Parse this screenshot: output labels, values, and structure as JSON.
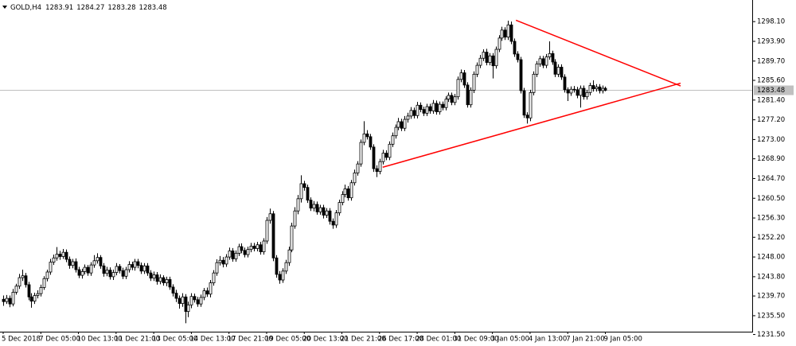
{
  "chart_data": {
    "type": "candlestick",
    "symbol": "GOLD,H4",
    "header_values": [
      1283.91,
      1284.27,
      1283.28,
      1283.48
    ],
    "categories": [
      "5 Dec 2018",
      null,
      null,
      null,
      null,
      null,
      null,
      null,
      null,
      null,
      null,
      null,
      "7 Dec 05:00",
      null,
      null,
      null,
      null,
      null,
      null,
      null,
      null,
      null,
      null,
      null,
      "10 Dec 13:00",
      null,
      null,
      null,
      null,
      null,
      null,
      null,
      null,
      null,
      null,
      null,
      "11 Dec 21:00",
      null,
      null,
      null,
      null,
      null,
      null,
      null,
      null,
      null,
      null,
      null,
      "13 Dec 05:00",
      null,
      null,
      null,
      null,
      null,
      null,
      null,
      null,
      null,
      null,
      null,
      "14 Dec 13:00",
      null,
      null,
      null,
      null,
      null,
      null,
      null,
      null,
      null,
      null,
      null,
      "17 Dec 21:00",
      null,
      null,
      null,
      null,
      null,
      null,
      null,
      null,
      null,
      null,
      null,
      "19 Dec 05:00",
      null,
      null,
      null,
      null,
      null,
      null,
      null,
      null,
      null,
      null,
      null,
      "20 Dec 13:00",
      null,
      null,
      null,
      null,
      null,
      null,
      null,
      null,
      null,
      null,
      null,
      "21 Dec 21:00",
      null,
      null,
      null,
      null,
      null,
      null,
      null,
      null,
      null,
      null,
      null,
      "26 Dec 17:00",
      null,
      null,
      null,
      null,
      null,
      null,
      null,
      null,
      null,
      null,
      null,
      "28 Dec 01:00",
      null,
      null,
      null,
      null,
      null,
      null,
      null,
      null,
      null,
      null,
      null,
      "31 Dec 09:00",
      null,
      null,
      null,
      null,
      null,
      null,
      null,
      null,
      null,
      null,
      null,
      "3 Jan 05:00",
      null,
      null,
      null,
      null,
      null,
      null,
      null,
      null,
      null,
      null,
      null,
      "4 Jan 13:00",
      null,
      null,
      null,
      null,
      null,
      null,
      null,
      null,
      null,
      null,
      null,
      "7 Jan 21:00",
      null,
      null,
      null,
      null,
      null,
      null,
      null,
      null,
      null,
      null,
      null,
      "9 Jan 05:00"
    ],
    "open": [
      1239.0,
      1238.5,
      1239.2,
      1238.0,
      1240.5,
      1241.8,
      1243.6,
      1244.0,
      1242.1,
      1239.5,
      1238.6,
      1239.8,
      1240.2,
      1241.5,
      1243.4,
      1244.8,
      1246.9,
      1247.8,
      1248.6,
      1248.1,
      1249.0,
      1247.5,
      1246.2,
      1247.0,
      1245.3,
      1244.1,
      1244.9,
      1245.8,
      1244.6,
      1246.3,
      1247.2,
      1247.9,
      1246.1,
      1244.5,
      1245.2,
      1243.8,
      1244.7,
      1246.0,
      1245.1,
      1243.9,
      1245.3,
      1246.4,
      1245.8,
      1247.0,
      1246.2,
      1245.0,
      1246.1,
      1244.6,
      1243.5,
      1244.2,
      1242.8,
      1243.6,
      1242.5,
      1243.2,
      1241.6,
      1240.3,
      1239.2,
      1238.1,
      1239.5,
      1236.4,
      1237.8,
      1239.6,
      1238.9,
      1238.0,
      1239.4,
      1240.8,
      1240.1,
      1242.5,
      1244.6,
      1246.8,
      1247.3,
      1246.5,
      1248.0,
      1249.3,
      1247.6,
      1248.8,
      1250.2,
      1249.4,
      1248.5,
      1249.6,
      1250.3,
      1249.8,
      1250.6,
      1249.1,
      1251.4,
      1255.8,
      1257.2,
      1247.8,
      1244.3,
      1243.1,
      1245.0,
      1246.8,
      1249.5,
      1254.6,
      1257.8,
      1260.4,
      1263.6,
      1262.8,
      1260.1,
      1258.4,
      1259.2,
      1257.6,
      1258.5,
      1256.9,
      1257.8,
      1255.6,
      1254.8,
      1257.4,
      1259.6,
      1261.3,
      1262.5,
      1260.6,
      1263.8,
      1265.9,
      1267.8,
      1272.4,
      1274.2,
      1273.6,
      1271.4,
      1266.8,
      1266.2,
      1268.3,
      1270.1,
      1269.2,
      1272.0,
      1273.8,
      1275.6,
      1276.8,
      1275.4,
      1277.3,
      1278.0,
      1279.2,
      1278.1,
      1280.3,
      1279.4,
      1278.6,
      1280.0,
      1279.1,
      1280.7,
      1278.9,
      1280.5,
      1279.8,
      1281.6,
      1282.4,
      1280.9,
      1282.1,
      1285.8,
      1287.2,
      1284.6,
      1280.4,
      1283.5,
      1286.9,
      1288.8,
      1290.3,
      1291.6,
      1289.4,
      1290.8,
      1288.7,
      1292.2,
      1294.6,
      1296.3,
      1294.8,
      1297.4,
      1293.9,
      1291.2,
      1290.0,
      1283.4,
      1278.2,
      1277.6,
      1283.0,
      1286.9,
      1289.1,
      1290.2,
      1288.8,
      1290.6,
      1291.3,
      1289.5,
      1286.9,
      1288.4,
      1286.3,
      1283.6,
      1282.9,
      1283.7,
      1283.6,
      1282.4,
      1283.9,
      1282.1,
      1283.0,
      1284.5,
      1283.8,
      1284.2,
      1283.4,
      1283.91
    ],
    "high": [
      1239.8,
      1239.9,
      1239.8,
      1241.2,
      1242.3,
      1244.4,
      1245.3,
      1244.6,
      1242.7,
      1240.3,
      1240.4,
      1240.9,
      1242.1,
      1243.9,
      1245.3,
      1247.6,
      1248.5,
      1250.1,
      1249.3,
      1249.7,
      1249.6,
      1248.1,
      1247.6,
      1247.7,
      1245.9,
      1245.5,
      1246.4,
      1246.3,
      1246.9,
      1248.4,
      1248.8,
      1248.4,
      1246.7,
      1245.9,
      1245.8,
      1245.3,
      1246.7,
      1246.5,
      1245.7,
      1245.9,
      1247.1,
      1247.0,
      1247.6,
      1247.6,
      1246.8,
      1246.7,
      1246.7,
      1245.2,
      1244.9,
      1244.8,
      1244.3,
      1244.1,
      1243.8,
      1243.8,
      1242.2,
      1241.0,
      1239.8,
      1240.3,
      1240.1,
      1238.5,
      1240.3,
      1240.2,
      1239.5,
      1240.0,
      1241.4,
      1241.5,
      1243.1,
      1245.2,
      1247.5,
      1248.2,
      1248.0,
      1248.6,
      1250.0,
      1249.9,
      1249.4,
      1250.8,
      1250.9,
      1250.0,
      1250.2,
      1251.0,
      1251.0,
      1251.2,
      1251.2,
      1252.0,
      1256.5,
      1258.3,
      1257.8,
      1248.4,
      1245.0,
      1245.6,
      1247.4,
      1250.2,
      1255.3,
      1258.6,
      1261.2,
      1265.4,
      1264.2,
      1263.4,
      1260.7,
      1259.9,
      1259.8,
      1259.1,
      1259.1,
      1258.4,
      1258.4,
      1256.2,
      1258.0,
      1260.2,
      1262.0,
      1263.4,
      1263.1,
      1264.4,
      1266.6,
      1268.4,
      1273.0,
      1276.9,
      1275.0,
      1274.2,
      1272.0,
      1267.5,
      1268.9,
      1270.8,
      1270.7,
      1272.6,
      1274.5,
      1276.2,
      1277.6,
      1277.4,
      1278.0,
      1278.7,
      1279.9,
      1279.8,
      1281.0,
      1280.9,
      1280.0,
      1280.6,
      1280.6,
      1281.4,
      1281.3,
      1281.1,
      1281.1,
      1282.2,
      1283.0,
      1283.0,
      1282.7,
      1286.4,
      1287.9,
      1287.8,
      1285.2,
      1284.1,
      1287.5,
      1289.4,
      1291.0,
      1292.2,
      1292.3,
      1291.4,
      1291.4,
      1292.8,
      1295.2,
      1297.0,
      1296.9,
      1298.3,
      1298.1,
      1294.5,
      1291.8,
      1290.6,
      1284.0,
      1278.8,
      1283.6,
      1287.5,
      1289.7,
      1290.8,
      1290.8,
      1291.2,
      1293.9,
      1291.9,
      1290.1,
      1289.0,
      1289.0,
      1286.9,
      1284.1,
      1284.3,
      1284.4,
      1284.2,
      1284.5,
      1284.5,
      1283.6,
      1285.1,
      1285.6,
      1284.8,
      1284.8,
      1284.5,
      1284.27
    ],
    "low": [
      1237.6,
      1238.0,
      1237.3,
      1237.5,
      1240.0,
      1241.2,
      1242.9,
      1241.5,
      1238.8,
      1237.2,
      1238.0,
      1239.2,
      1239.6,
      1241.0,
      1242.8,
      1244.2,
      1246.3,
      1247.2,
      1247.4,
      1247.6,
      1246.9,
      1245.5,
      1245.6,
      1244.7,
      1243.5,
      1243.4,
      1244.3,
      1244.0,
      1244.0,
      1245.7,
      1246.6,
      1245.5,
      1243.8,
      1243.9,
      1243.2,
      1243.1,
      1244.1,
      1244.5,
      1243.3,
      1243.3,
      1244.7,
      1245.2,
      1245.1,
      1245.6,
      1244.4,
      1244.4,
      1244.0,
      1242.9,
      1242.9,
      1242.1,
      1242.2,
      1241.9,
      1241.8,
      1241.0,
      1239.6,
      1238.4,
      1237.0,
      1237.4,
      1233.9,
      1235.2,
      1237.1,
      1238.3,
      1237.4,
      1237.4,
      1238.8,
      1239.5,
      1239.4,
      1241.9,
      1244.0,
      1246.2,
      1245.8,
      1245.9,
      1247.4,
      1247.0,
      1247.0,
      1248.2,
      1248.8,
      1247.9,
      1247.9,
      1249.0,
      1249.2,
      1249.2,
      1248.5,
      1248.5,
      1250.8,
      1255.1,
      1247.1,
      1243.6,
      1242.3,
      1242.5,
      1244.4,
      1246.1,
      1249.0,
      1254.0,
      1257.1,
      1259.6,
      1262.1,
      1259.5,
      1257.8,
      1257.7,
      1257.0,
      1257.0,
      1256.2,
      1256.3,
      1254.9,
      1254.0,
      1254.2,
      1256.8,
      1259.0,
      1260.7,
      1260.0,
      1260.0,
      1263.2,
      1265.3,
      1267.2,
      1271.8,
      1273.0,
      1270.8,
      1266.1,
      1265.0,
      1265.6,
      1267.7,
      1268.6,
      1268.6,
      1271.4,
      1273.2,
      1275.0,
      1274.8,
      1274.8,
      1276.6,
      1277.4,
      1277.5,
      1277.5,
      1278.8,
      1278.0,
      1278.0,
      1278.5,
      1278.5,
      1278.3,
      1278.3,
      1279.2,
      1279.2,
      1281.0,
      1280.3,
      1280.3,
      1281.5,
      1285.2,
      1284.0,
      1279.8,
      1279.8,
      1282.9,
      1286.3,
      1288.2,
      1289.7,
      1288.8,
      1288.8,
      1286.0,
      1288.1,
      1291.6,
      1294.0,
      1294.2,
      1294.2,
      1293.3,
      1290.6,
      1289.4,
      1282.8,
      1277.6,
      1276.4,
      1276.9,
      1282.4,
      1286.3,
      1288.5,
      1288.2,
      1288.2,
      1290.0,
      1288.9,
      1286.3,
      1286.3,
      1285.7,
      1283.0,
      1281.2,
      1282.3,
      1283.0,
      1281.8,
      1279.8,
      1281.5,
      1281.5,
      1282.4,
      1283.2,
      1283.2,
      1282.8,
      1282.8,
      1283.28
    ],
    "close": [
      1238.5,
      1239.2,
      1238.0,
      1240.5,
      1241.8,
      1243.6,
      1244.0,
      1242.1,
      1239.5,
      1238.6,
      1239.8,
      1240.2,
      1241.5,
      1243.4,
      1244.8,
      1246.9,
      1247.8,
      1248.6,
      1248.1,
      1249.0,
      1247.5,
      1246.2,
      1247.0,
      1245.3,
      1244.1,
      1244.9,
      1245.8,
      1244.6,
      1246.3,
      1247.2,
      1247.9,
      1246.1,
      1244.5,
      1245.2,
      1243.8,
      1244.7,
      1246.0,
      1245.1,
      1243.9,
      1245.3,
      1246.4,
      1245.8,
      1247.0,
      1246.2,
      1245.0,
      1246.1,
      1244.6,
      1243.5,
      1244.2,
      1242.8,
      1243.6,
      1242.5,
      1243.2,
      1241.6,
      1240.3,
      1239.2,
      1238.1,
      1239.5,
      1236.4,
      1237.8,
      1239.6,
      1238.9,
      1238.0,
      1239.4,
      1240.8,
      1240.1,
      1242.5,
      1244.6,
      1246.8,
      1247.3,
      1246.5,
      1248.0,
      1249.3,
      1247.6,
      1248.8,
      1250.2,
      1249.4,
      1248.5,
      1249.6,
      1250.3,
      1249.8,
      1250.6,
      1249.1,
      1251.4,
      1255.8,
      1257.2,
      1247.8,
      1244.3,
      1243.1,
      1245.0,
      1246.8,
      1249.5,
      1254.6,
      1257.8,
      1260.4,
      1263.6,
      1262.8,
      1260.1,
      1258.4,
      1259.2,
      1257.6,
      1258.5,
      1256.9,
      1257.8,
      1255.6,
      1254.8,
      1257.4,
      1259.6,
      1261.3,
      1262.5,
      1260.6,
      1263.8,
      1265.9,
      1267.8,
      1272.4,
      1274.2,
      1273.6,
      1271.4,
      1266.8,
      1266.2,
      1268.3,
      1270.1,
      1269.2,
      1272.0,
      1273.8,
      1275.6,
      1276.8,
      1275.4,
      1277.3,
      1278.0,
      1279.2,
      1278.1,
      1280.3,
      1279.4,
      1278.6,
      1280.0,
      1279.1,
      1280.7,
      1278.9,
      1280.5,
      1279.8,
      1281.6,
      1282.4,
      1280.9,
      1282.1,
      1285.8,
      1287.2,
      1284.6,
      1280.4,
      1283.5,
      1286.9,
      1288.8,
      1290.3,
      1291.6,
      1289.4,
      1290.8,
      1288.7,
      1292.2,
      1294.6,
      1296.3,
      1294.8,
      1297.4,
      1293.9,
      1291.2,
      1290.0,
      1283.4,
      1278.2,
      1277.6,
      1283.0,
      1286.9,
      1289.1,
      1290.2,
      1288.8,
      1290.6,
      1291.3,
      1289.5,
      1286.9,
      1288.4,
      1286.3,
      1283.6,
      1282.9,
      1283.7,
      1283.6,
      1282.4,
      1283.9,
      1282.1,
      1283.0,
      1284.5,
      1283.8,
      1284.2,
      1283.4,
      1283.9,
      1283.48
    ],
    "up_color": "#ffffff",
    "down_color": "#000000",
    "wick_color": "#000000",
    "ylim": [
      1232.1,
      1302.7
    ],
    "yticks": [
      {
        "value": 1231.5,
        "label": "1231.50"
      },
      {
        "value": 1235.5,
        "label": "1235.50"
      },
      {
        "value": 1239.7,
        "label": "1239.70"
      },
      {
        "value": 1243.8,
        "label": "1243.80"
      },
      {
        "value": 1248.0,
        "label": "1248.00"
      },
      {
        "value": 1252.2,
        "label": "1252.20"
      },
      {
        "value": 1256.3,
        "label": "1256.30"
      },
      {
        "value": 1260.5,
        "label": "1260.50"
      },
      {
        "value": 1264.7,
        "label": "1264.70"
      },
      {
        "value": 1268.9,
        "label": "1268.90"
      },
      {
        "value": 1273.0,
        "label": "1273.00"
      },
      {
        "value": 1277.2,
        "label": "1277.20"
      },
      {
        "value": 1281.4,
        "label": "1281.40"
      },
      {
        "value": 1285.6,
        "label": "1285.60"
      },
      {
        "value": 1289.7,
        "label": "1289.70"
      },
      {
        "value": 1293.9,
        "label": "1293.90"
      },
      {
        "value": 1298.1,
        "label": "1298.10"
      }
    ],
    "last_price": 1283.48,
    "price_line_color": "#c0c0c0",
    "trendline_color": "#ff0000",
    "trendlines": [
      {
        "x": [
          163.5,
          216
        ],
        "y": [
          1298.4,
          1284.4
        ]
      },
      {
        "x": [
          121,
          216
        ],
        "y": [
          1267.1,
          1285.0
        ]
      }
    ],
    "grid": false
  }
}
